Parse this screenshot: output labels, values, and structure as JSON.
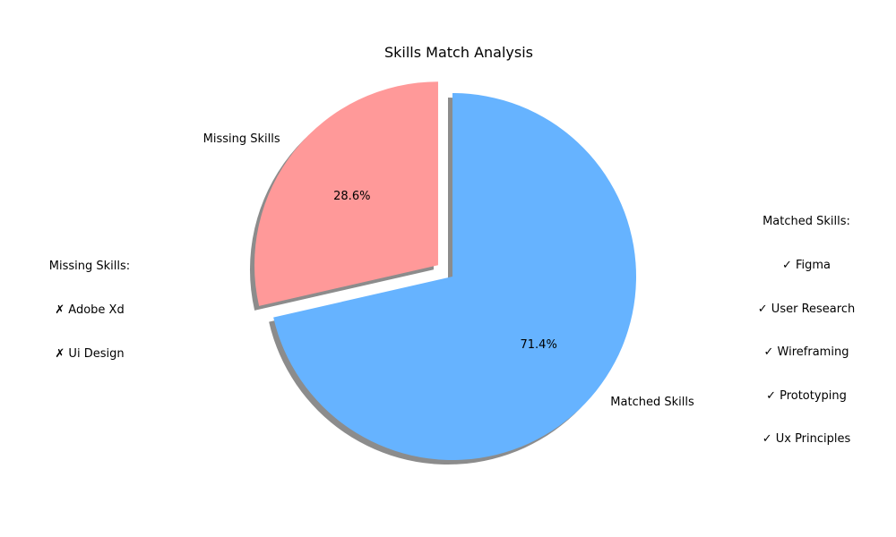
{
  "chart_data": {
    "type": "pie",
    "title": "Skills Match Analysis",
    "slices": [
      {
        "label": "Matched Skills",
        "value": 5,
        "percent_label": "71.4%",
        "color": "#66b3ff",
        "explode": 0
      },
      {
        "label": "Missing Skills",
        "value": 2,
        "percent_label": "28.6%",
        "color": "#ff9999",
        "explode": 0.1
      }
    ],
    "start_angle_deg": 90,
    "direction": "clockwise",
    "shadow": true
  },
  "annotations": {
    "matched": {
      "heading": "Matched Skills:",
      "items": [
        "✓ Figma",
        "✓ User Research",
        "✓ Wireframing",
        "✓ Prototyping",
        "✓ Ux Principles"
      ]
    },
    "missing": {
      "heading": "Missing Skills:",
      "items": [
        "✗ Adobe Xd",
        "✗ Ui Design"
      ]
    }
  }
}
